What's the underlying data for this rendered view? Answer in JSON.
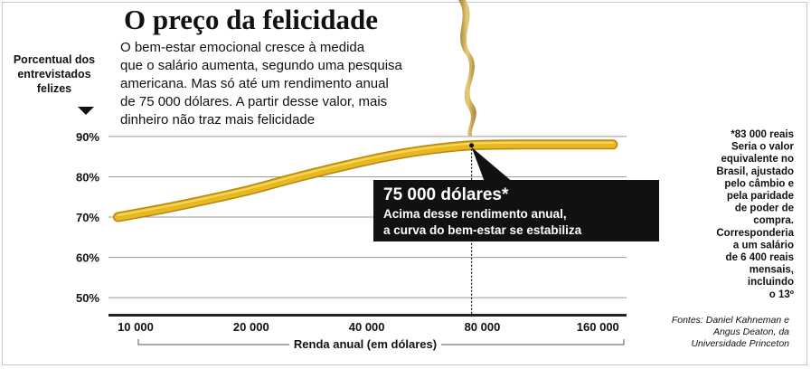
{
  "chart_data": {
    "type": "line",
    "title": "O preço da felicidade",
    "subtitle_lines": [
      "O bem-estar emocional cresce à medida",
      "que o salário aumenta, segundo uma pesquisa",
      "americana. Mas só até um rendimento anual",
      "de 75 000 dólares. A partir desse valor, mais",
      "dinheiro não traz mais felicidade"
    ],
    "ylabel_lines": [
      "Porcentual dos",
      "entrevistados",
      "felizes"
    ],
    "xlabel": "Renda anual (em dólares)",
    "x_scale": "log",
    "x_ticks": [
      10000,
      20000,
      40000,
      80000,
      160000
    ],
    "x_tick_labels": [
      "10 000",
      "20 000",
      "40 000",
      "80 000",
      "160 000"
    ],
    "xlim": [
      8500,
      190000
    ],
    "y_ticks": [
      50,
      60,
      70,
      80,
      90
    ],
    "y_tick_labels": [
      "50%",
      "60%",
      "70%",
      "80%",
      "90%"
    ],
    "ylim": [
      46,
      92
    ],
    "grid": true,
    "series": [
      {
        "color": "#e8b820",
        "x": [
          9000,
          12000,
          16000,
          20000,
          25000,
          30000,
          40000,
          50000,
          60000,
          75000,
          100000,
          130000,
          175000
        ],
        "y": [
          70.0,
          72.2,
          74.7,
          76.8,
          79.3,
          81.2,
          84.0,
          85.8,
          86.9,
          87.8,
          88.0,
          88.0,
          88.0
        ]
      }
    ],
    "annotation": {
      "x": 75000,
      "y": 87.8,
      "title": "75 000 dólares*",
      "lines": [
        "Acima desse rendimento anual,",
        "a curva do bem-estar se estabiliza"
      ]
    },
    "footnote_lines": [
      "*83 000 reais",
      "Seria o valor",
      "equivalente no",
      "Brasil, ajustado",
      "pelo câmbio e",
      "pela paridade",
      "de poder de",
      "compra.",
      "Corresponderia",
      "a um salário",
      "de 6 400 reais",
      "mensais,",
      "incluindo",
      "o 13º"
    ],
    "source_lines": [
      "Fontes: Daniel Kahneman e",
      "Angus Deaton, da",
      "Universidade Princeton"
    ]
  },
  "colors": {
    "curve": "#e8b820",
    "curve_edge": "#b8860b",
    "annotation_box": "#111111",
    "ribbon": "#c9a23a"
  }
}
